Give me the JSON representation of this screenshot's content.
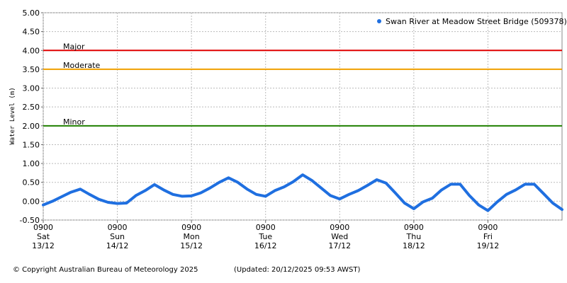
{
  "chart_data": {
    "type": "line",
    "legend_title": "Swan River at Meadow Street Bridge (509378)",
    "y_label": "Water Level (m)",
    "footer_left": "© Copyright Australian Bureau of Meteorology 2025",
    "footer_right": "(Updated: 20/12/2025 09:53 AWST)",
    "legend_position": "top-right",
    "grid": true,
    "ylim": [
      -0.5,
      5.0
    ],
    "yticks": [
      {
        "value": -0.5,
        "label": "-0.50"
      },
      {
        "value": 0,
        "label": "0.00"
      },
      {
        "value": 0.5,
        "label": "0.50"
      },
      {
        "value": 1,
        "label": "1.00"
      },
      {
        "value": 1.5,
        "label": "1.50"
      },
      {
        "value": 2,
        "label": "2.00"
      },
      {
        "value": 2.5,
        "label": "2.50"
      },
      {
        "value": 3,
        "label": "3.00"
      },
      {
        "value": 3.5,
        "label": "3.50"
      },
      {
        "value": 4,
        "label": "4.00"
      },
      {
        "value": 4.5,
        "label": "4.50"
      },
      {
        "value": 5,
        "label": "5.00"
      }
    ],
    "xlim": [
      "13/12 0900",
      "20/12 0900"
    ],
    "xticks": [
      {
        "value": "13/12 0900",
        "label": [
          "0900",
          "Sat",
          "13/12"
        ]
      },
      {
        "value": "14/12 0900",
        "label": [
          "0900",
          "Sun",
          "14/12"
        ]
      },
      {
        "value": "15/12 0900",
        "label": [
          "0900",
          "Mon",
          "15/12"
        ]
      },
      {
        "value": "16/12 0900",
        "label": [
          "0900",
          "Tue",
          "16/12"
        ]
      },
      {
        "value": "17/12 0900",
        "label": [
          "0900",
          "Wed",
          "17/12"
        ]
      },
      {
        "value": "18/12 0900",
        "label": [
          "0900",
          "Thu",
          "18/12"
        ]
      },
      {
        "value": "19/12 0900",
        "label": [
          "0900",
          "Fri",
          "19/12"
        ]
      }
    ],
    "thresholds": [
      {
        "name": "Major",
        "value": 4.0,
        "color": "#e00000"
      },
      {
        "name": "Moderate",
        "value": 3.5,
        "color": "#f0a000"
      },
      {
        "name": "Minor",
        "value": 2.0,
        "color": "#208000"
      }
    ],
    "x": [
      "13/12 0900",
      "13/12 1200",
      "13/12 1500",
      "13/12 1800",
      "13/12 2100",
      "14/12 0000",
      "14/12 0300",
      "14/12 0600",
      "14/12 0900",
      "14/12 1200",
      "14/12 1500",
      "14/12 1800",
      "14/12 2100",
      "15/12 0000",
      "15/12 0300",
      "15/12 0600",
      "15/12 0900",
      "15/12 1200",
      "15/12 1500",
      "15/12 1800",
      "15/12 2100",
      "16/12 0000",
      "16/12 0300",
      "16/12 0600",
      "16/12 0900",
      "16/12 1200",
      "16/12 1500",
      "16/12 1800",
      "16/12 2100",
      "17/12 0000",
      "17/12 0300",
      "17/12 0600",
      "17/12 0900",
      "17/12 1200",
      "17/12 1500",
      "17/12 1800",
      "17/12 2100",
      "18/12 0000",
      "18/12 0300",
      "18/12 0600",
      "18/12 0900",
      "18/12 1200",
      "18/12 1500",
      "18/12 1800",
      "18/12 2100",
      "19/12 0000",
      "19/12 0300",
      "19/12 0600",
      "19/12 0900",
      "19/12 1200",
      "19/12 1500",
      "19/12 1800",
      "19/12 2100",
      "20/12 0000",
      "20/12 0300",
      "20/12 0600",
      "20/12 0900"
    ],
    "series": [
      {
        "name": "Swan River at Meadow Street Bridge (509378)",
        "color": "#1f6fe0",
        "values": [
          -0.1,
          0.0,
          0.12,
          0.24,
          0.32,
          0.18,
          0.05,
          -0.03,
          -0.06,
          -0.05,
          0.15,
          0.28,
          0.44,
          0.3,
          0.18,
          0.13,
          0.14,
          0.22,
          0.35,
          0.5,
          0.62,
          0.5,
          0.32,
          0.18,
          0.13,
          0.28,
          0.38,
          0.52,
          0.7,
          0.55,
          0.35,
          0.15,
          0.06,
          0.18,
          0.28,
          0.42,
          0.57,
          0.48,
          0.22,
          -0.05,
          -0.2,
          -0.02,
          0.08,
          0.3,
          0.45,
          0.45,
          0.15,
          -0.1,
          -0.25,
          -0.02,
          0.18,
          0.3,
          0.45,
          0.45,
          0.2,
          -0.05,
          -0.22
        ]
      }
    ]
  }
}
